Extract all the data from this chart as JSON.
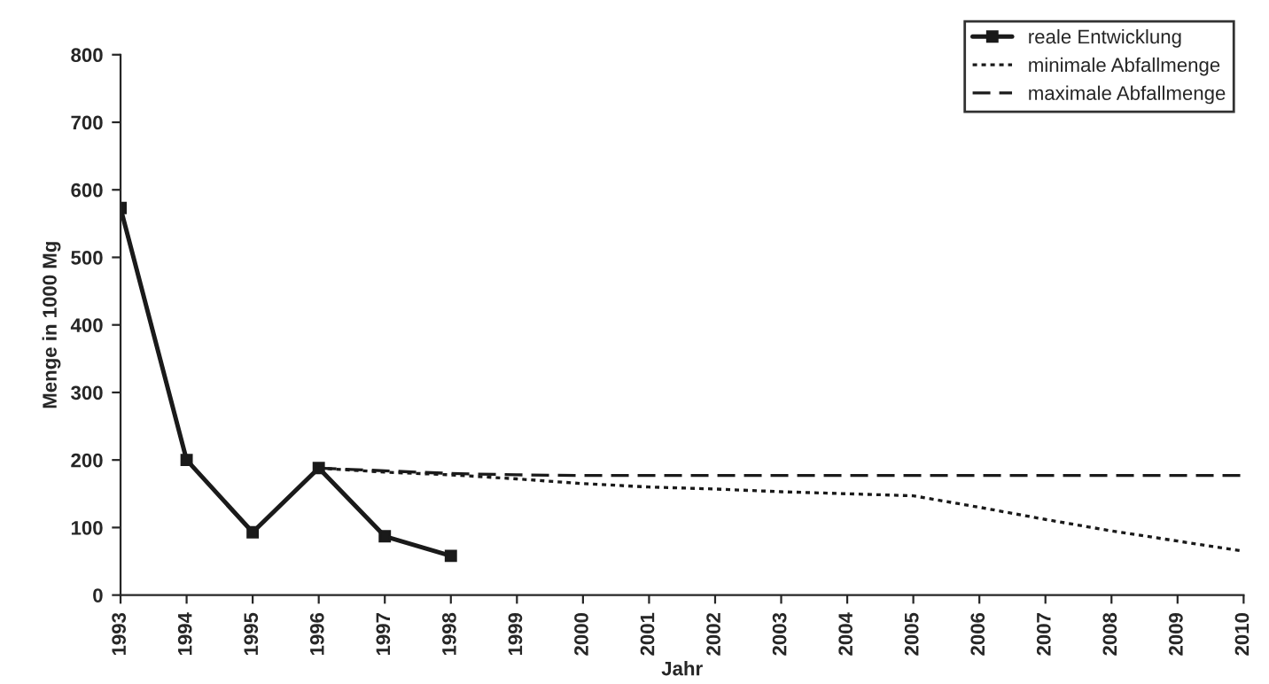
{
  "chart_data": {
    "type": "line",
    "xlabel": "Jahr",
    "ylabel": "Menge in 1000 Mg",
    "categories": [
      "1993",
      "1994",
      "1995",
      "1996",
      "1997",
      "1998",
      "1999",
      "2000",
      "2001",
      "2002",
      "2003",
      "2004",
      "2005",
      "2006",
      "2007",
      "2008",
      "2009",
      "2010"
    ],
    "series": [
      {
        "name": "reale Entwicklung",
        "color": "#1a1a1a",
        "marker": "square",
        "line_style": "solid",
        "values": [
          573,
          200,
          93,
          188,
          87,
          58,
          null,
          null,
          null,
          null,
          null,
          null,
          null,
          null,
          null,
          null,
          null,
          null
        ]
      },
      {
        "name": "minimale Abfallmenge",
        "color": "#1a1a1a",
        "marker": "none",
        "line_style": "dotted",
        "values": [
          null,
          null,
          null,
          188,
          182,
          178,
          172,
          165,
          160,
          157,
          153,
          150,
          147,
          130,
          112,
          95,
          80,
          65
        ]
      },
      {
        "name": "maximale Abfallmenge",
        "color": "#1a1a1a",
        "marker": "none",
        "line_style": "dashed",
        "values": [
          null,
          null,
          null,
          188,
          184,
          180,
          178,
          177,
          177,
          177,
          177,
          177,
          177,
          177,
          177,
          177,
          177,
          177
        ]
      }
    ],
    "ylim": [
      0,
      800
    ],
    "yticks": [
      0,
      100,
      200,
      300,
      400,
      500,
      600,
      700,
      800
    ],
    "grid": false,
    "legend": "top right"
  }
}
